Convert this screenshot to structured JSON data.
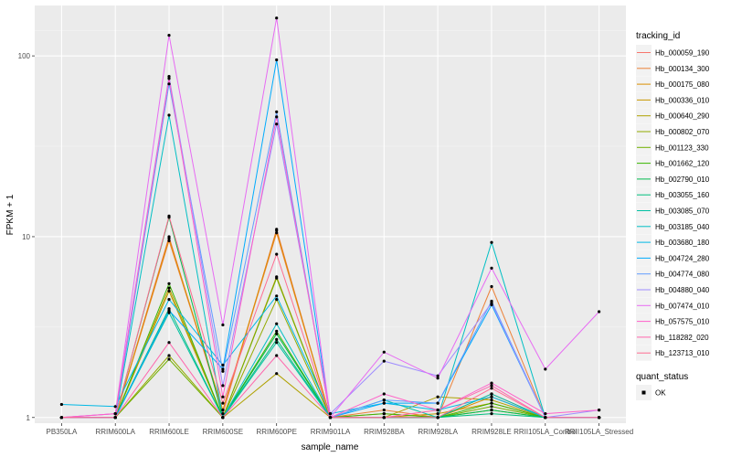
{
  "chart_data": {
    "type": "line",
    "title": "",
    "xlabel": "sample_name",
    "ylabel": "FPKM + 1",
    "y_scale": "log10",
    "ylim": [
      0.93,
      190
    ],
    "yticks": [
      1,
      10,
      100
    ],
    "ytick_labels": [
      "1",
      "10",
      "100"
    ],
    "grid": true,
    "legend_position": "right",
    "categories": [
      "PB350LA",
      "RRIM600LA",
      "RRIM600LE",
      "RRIM600SE",
      "RRIM600PE",
      "RRIM901LA",
      "RRIM928BA",
      "RRIM928LA",
      "RRIM928LE",
      "RRII105LA_Control",
      "RRII105LA_Stressed"
    ],
    "colour_legend_title": "tracking_id",
    "series": [
      {
        "name": "Hb_000059_190",
        "color": "#F8766D",
        "values": [
          1.0,
          1.0,
          10.0,
          1.05,
          11.0,
          1.0,
          1.05,
          1.0,
          1.35,
          1.0,
          1.0
        ]
      },
      {
        "name": "Hb_000134_300",
        "color": "#EC8239",
        "values": [
          1.0,
          1.0,
          9.5,
          1.1,
          10.5,
          1.0,
          1.1,
          1.0,
          5.3,
          1.0,
          1.0
        ]
      },
      {
        "name": "Hb_000175_080",
        "color": "#DB8E00",
        "values": [
          1.0,
          1.0,
          9.8,
          1.1,
          10.8,
          1.0,
          1.0,
          1.0,
          1.3,
          1.0,
          1.0
        ]
      },
      {
        "name": "Hb_000336_010",
        "color": "#C79800",
        "values": [
          1.0,
          1.0,
          5.2,
          1.0,
          6.0,
          1.0,
          1.0,
          1.05,
          1.2,
          1.0,
          1.0
        ]
      },
      {
        "name": "Hb_000640_290",
        "color": "#AFA100",
        "values": [
          1.0,
          1.0,
          5.0,
          1.0,
          1.75,
          1.0,
          1.0,
          1.3,
          1.25,
          1.0,
          1.0
        ]
      },
      {
        "name": "Hb_000802_070",
        "color": "#93AA00",
        "values": [
          1.0,
          1.0,
          2.2,
          1.0,
          4.5,
          1.0,
          1.0,
          1.0,
          1.1,
          1.0,
          1.0
        ]
      },
      {
        "name": "Hb_001123_330",
        "color": "#70B000",
        "values": [
          1.0,
          1.0,
          2.1,
          1.0,
          5.9,
          1.0,
          1.0,
          1.0,
          1.15,
          1.0,
          1.0
        ]
      },
      {
        "name": "Hb_001662_120",
        "color": "#39B600",
        "values": [
          1.0,
          1.0,
          5.5,
          1.0,
          3.0,
          1.0,
          1.05,
          1.0,
          1.2,
          1.0,
          1.0
        ]
      },
      {
        "name": "Hb_002790_010",
        "color": "#00BB4E",
        "values": [
          1.0,
          1.0,
          12.8,
          1.0,
          2.9,
          1.0,
          1.0,
          1.0,
          1.1,
          1.0,
          1.0
        ]
      },
      {
        "name": "Hb_003055_160",
        "color": "#00BF7D",
        "values": [
          1.0,
          1.0,
          4.0,
          1.0,
          2.7,
          1.0,
          1.0,
          1.0,
          1.05,
          1.0,
          1.0
        ]
      },
      {
        "name": "Hb_003085_070",
        "color": "#00C1A3",
        "values": [
          1.0,
          1.0,
          3.8,
          1.0,
          2.6,
          1.0,
          1.25,
          1.0,
          1.35,
          1.0,
          1.0
        ]
      },
      {
        "name": "Hb_003185_040",
        "color": "#00BFC4",
        "values": [
          1.0,
          1.0,
          47.0,
          1.0,
          3.3,
          1.0,
          1.0,
          1.0,
          9.3,
          1.0,
          1.0
        ]
      },
      {
        "name": "Hb_003680_180",
        "color": "#00B8E5",
        "values": [
          1.18,
          1.15,
          4.5,
          1.95,
          4.7,
          1.05,
          1.2,
          1.1,
          1.3,
          1.0,
          1.0
        ]
      },
      {
        "name": "Hb_004724_280",
        "color": "#00ABFD",
        "values": [
          1.0,
          1.0,
          3.9,
          1.85,
          95.0,
          1.0,
          1.2,
          1.2,
          4.2,
          1.0,
          1.0
        ]
      },
      {
        "name": "Hb_004774_080",
        "color": "#619CFF",
        "values": [
          1.0,
          1.0,
          70.0,
          1.8,
          49.0,
          1.0,
          1.25,
          1.2,
          4.4,
          1.0,
          1.0
        ]
      },
      {
        "name": "Hb_004880_040",
        "color": "#9F8CFF",
        "values": [
          1.0,
          1.05,
          77.0,
          1.5,
          42.0,
          1.05,
          2.05,
          1.7,
          4.3,
          1.0,
          1.1
        ]
      },
      {
        "name": "Hb_007474_010",
        "color": "#E76BF3",
        "values": [
          1.0,
          1.05,
          130.0,
          3.25,
          162.0,
          1.0,
          2.3,
          1.65,
          6.7,
          1.85,
          3.85
        ]
      },
      {
        "name": "Hb_057575_010",
        "color": "#FF61C9",
        "values": [
          1.0,
          1.05,
          75.0,
          1.3,
          46.0,
          1.0,
          1.35,
          1.1,
          1.55,
          1.05,
          1.1
        ]
      },
      {
        "name": "Hb_118282_020",
        "color": "#FF65AC",
        "values": [
          1.0,
          1.0,
          2.6,
          1.0,
          2.2,
          1.0,
          1.0,
          1.1,
          1.5,
          1.0,
          1.0
        ]
      },
      {
        "name": "Hb_123713_010",
        "color": "#FF6C91",
        "values": [
          1.0,
          1.0,
          13.0,
          1.2,
          8.0,
          1.0,
          1.0,
          1.0,
          1.45,
          1.0,
          1.0
        ]
      }
    ],
    "shape_legend_title": "quant_status",
    "shape_legend_items": [
      "OK"
    ],
    "point_color": "#000000"
  }
}
